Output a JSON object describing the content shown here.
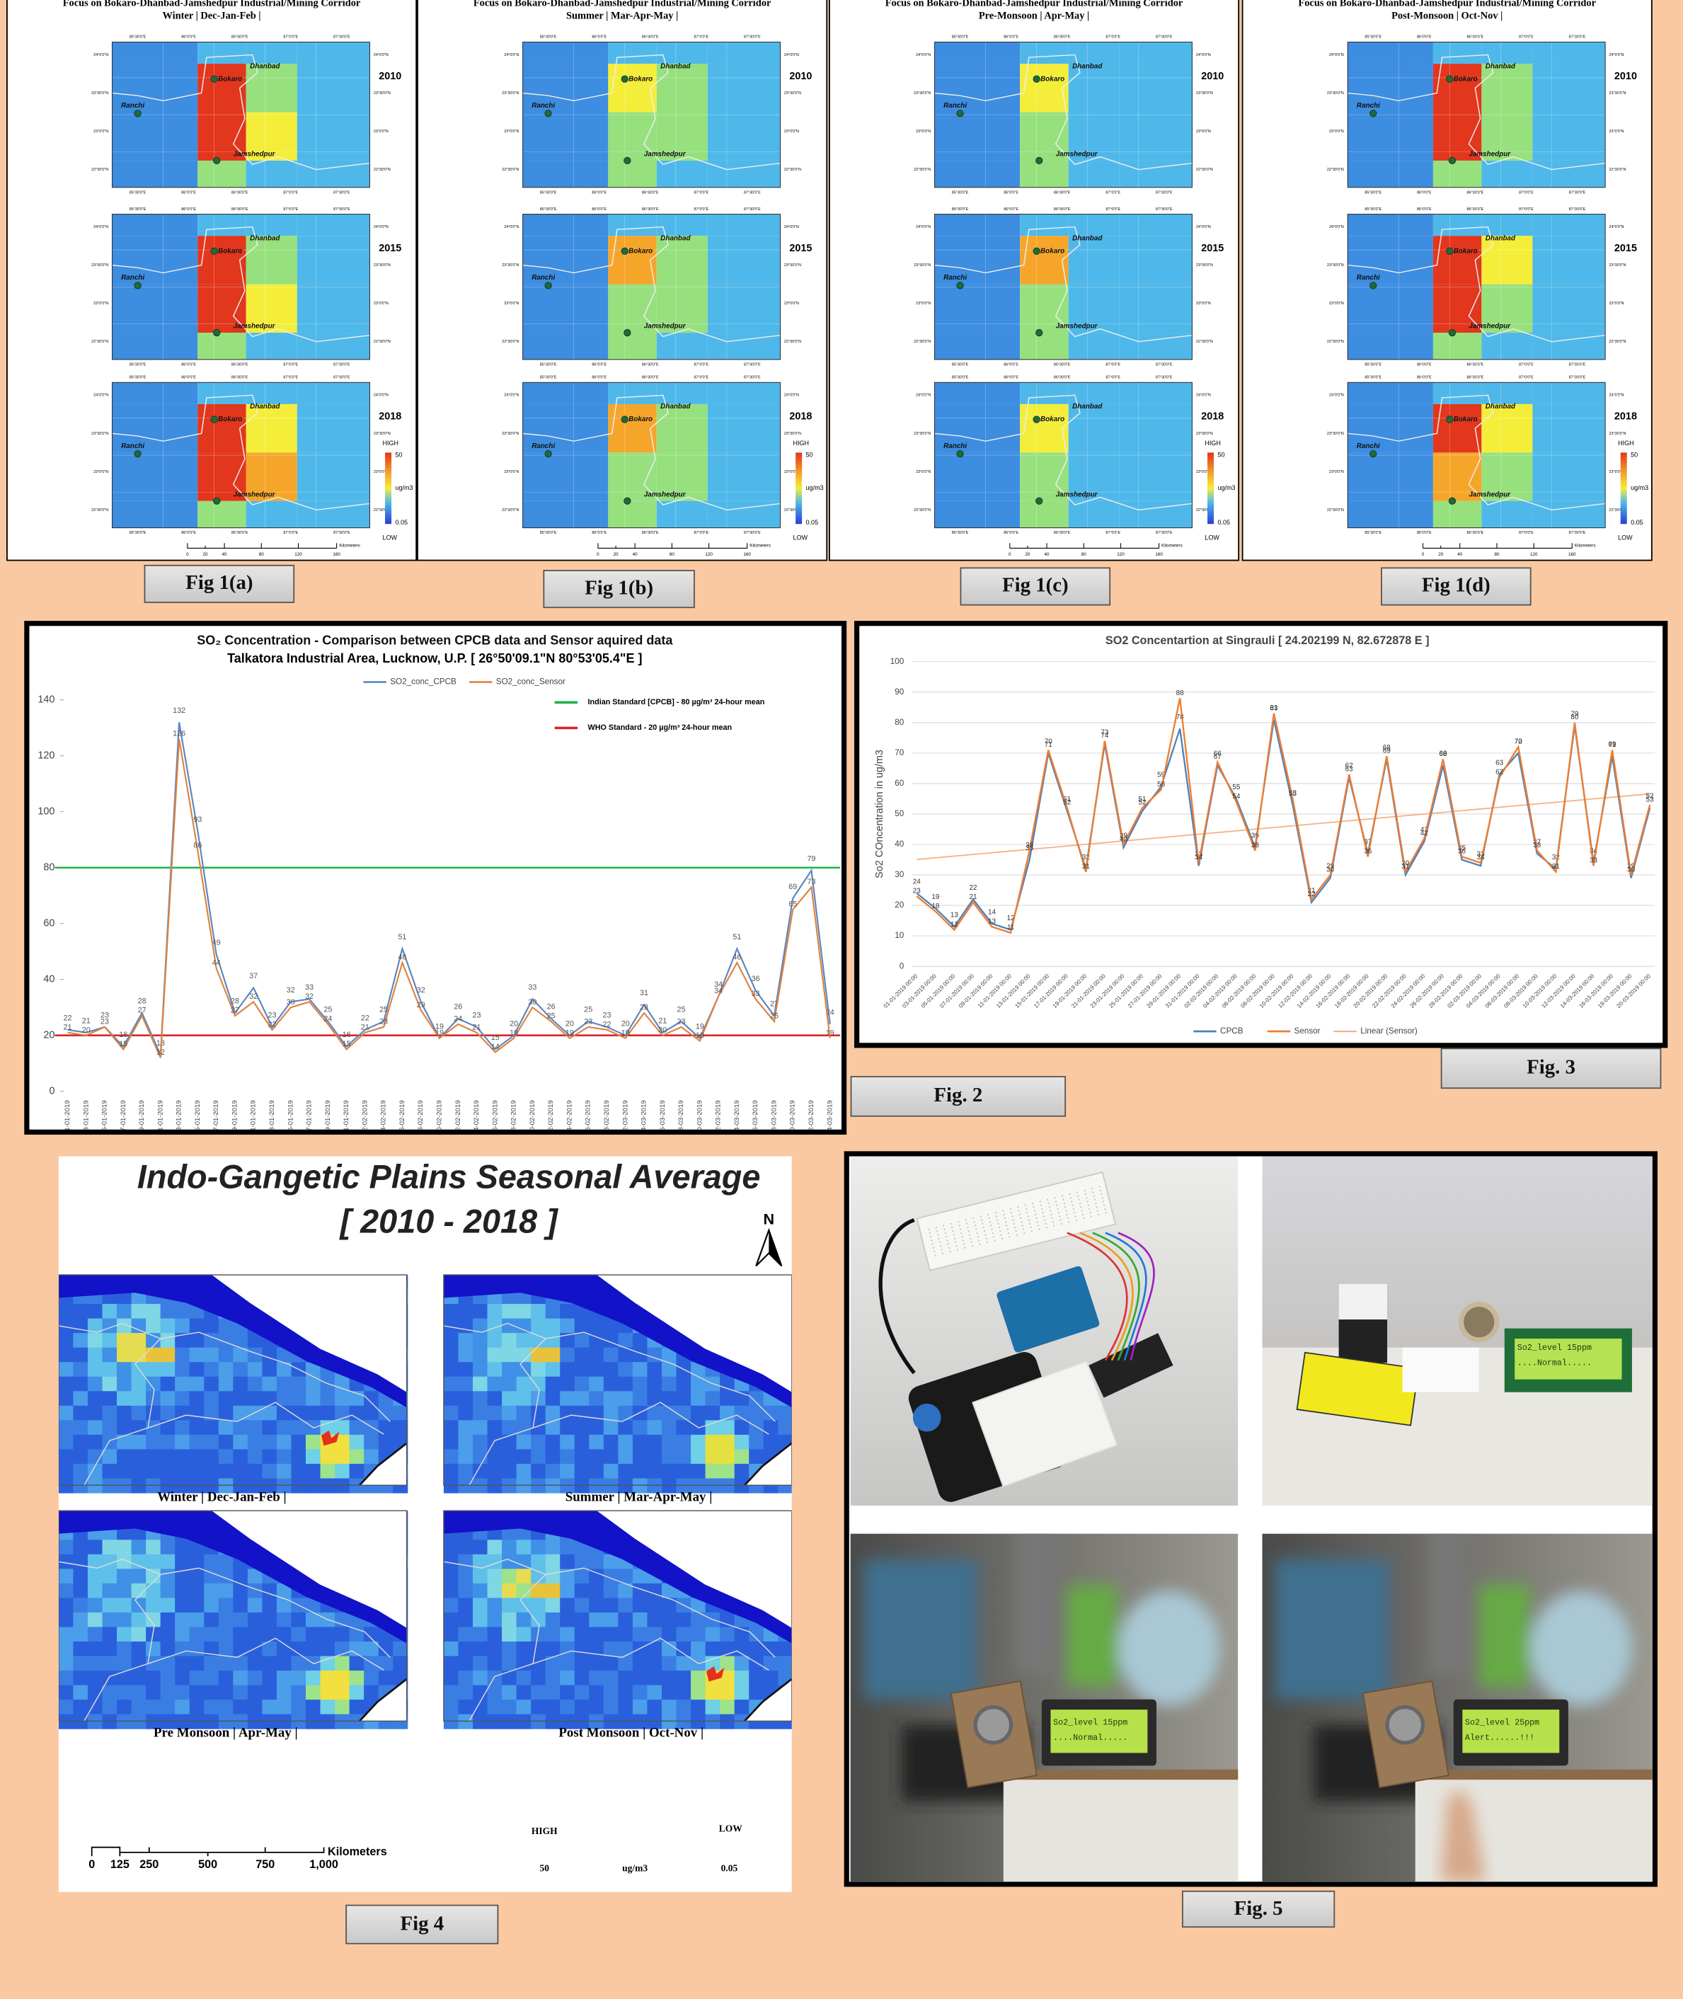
{
  "fig1": {
    "panels": [
      {
        "title": "Focus on Bokaro-Dhanbad-Jamshedpur Industrial/Mining Corridor",
        "season": "Winter | Dec-Jan-Feb |",
        "caption": "Fig 1(a)"
      },
      {
        "title": "Focus on Bokaro-Dhanbad-Jamshedpur Industrial/Mining Corridor",
        "season": "Summer | Mar-Apr-May |",
        "caption": "Fig 1(b)"
      },
      {
        "title": "Focus on Bokaro-Dhanbad-Jamshedpur Industrial/Mining Corridor",
        "season": "Pre-Monsoon | Apr-May |",
        "caption": "Fig 1(c)"
      },
      {
        "title": "Focus on Bokaro-Dhanbad-Jamshedpur Industrial/Mining Corridor",
        "season": "Post-Monsoon | Oct-Nov |",
        "caption": "Fig 1(d)"
      }
    ],
    "years": [
      "2010",
      "2015",
      "2018"
    ],
    "places": {
      "ranchi": "Ranchi",
      "bokaro": "Bokaro",
      "dhanbad": "Dhanbad",
      "jamshedpur": "Jamshedpur"
    },
    "lon_ticks": [
      "85°30'0\"E",
      "86°0'0\"E",
      "86°30'0\"E",
      "87°0'0\"E",
      "87°30'0\"E"
    ],
    "lat_ticks": [
      "24°0'0\"N",
      "23°30'0\"N",
      "23°0'0\"N",
      "22°30'0\"N"
    ],
    "legend": {
      "high": "HIGH",
      "max": "50",
      "unit": "ug/m3",
      "min": "0.05",
      "low": "LOW"
    },
    "scale": {
      "ticks": [
        "0",
        "20",
        "40",
        "80",
        "120",
        "160"
      ],
      "unit": "Kilometers"
    }
  },
  "chart_data": [
    {
      "type": "line",
      "title": "SO₂ Concentration - Comparison between CPCB data and Sensor aquired data",
      "subtitle": "Talkatora Industrial Area, Lucknow, U.P. [ 26°50'09.1\"N  80°53'05.4\"E ]",
      "categories": [
        "01-01-2019",
        "03-01-2019",
        "05-01-2019",
        "07-01-2019",
        "09-01-2019",
        "11-01-2019",
        "13-01-2019",
        "15-01-2019",
        "17-01-2019",
        "19-01-2019",
        "21-01-2019",
        "23-01-2019",
        "25-01-2019",
        "27-01-2019",
        "29-01-2019",
        "31-01-2019",
        "02-02-2019",
        "04-02-2019",
        "06-02-2019",
        "08-02-2019",
        "10-02-2019",
        "12-02-2019",
        "14-02-2019",
        "16-02-2019",
        "18-02-2019",
        "20-02-2019",
        "22-02-2019",
        "24-02-2019",
        "26-02-2019",
        "28-02-2019",
        "02-03-2019",
        "04-03-2019",
        "06-03-2019",
        "08-03-2019",
        "10-03-2019",
        "12-03-2019",
        "14-03-2019",
        "16-03-2019",
        "18-03-2019",
        "20-03-2019",
        "22-03-2019",
        "24-03-2019"
      ],
      "series": [
        {
          "name": "SO2_conc_CPCB",
          "color": "#5b86c2",
          "values": [
            22,
            21,
            23,
            16,
            28,
            13,
            132,
            93,
            49,
            28,
            37,
            23,
            32,
            33,
            25,
            16,
            22,
            25,
            51,
            32,
            19,
            26,
            23,
            15,
            20,
            33,
            26,
            20,
            25,
            23,
            20,
            31,
            21,
            25,
            19,
            34,
            51,
            36,
            27,
            69,
            79,
            24
          ]
        },
        {
          "name": "SO2_conc_Sensor",
          "color": "#e0823f",
          "values": [
            21,
            20,
            23,
            15,
            27,
            12,
            126,
            86,
            44,
            27,
            32,
            22,
            30,
            32,
            24,
            15,
            21,
            23,
            46,
            29,
            19,
            24,
            21,
            14,
            19,
            30,
            25,
            19,
            23,
            22,
            19,
            28,
            20,
            23,
            18,
            34,
            46,
            33,
            25,
            65,
            73,
            19
          ]
        }
      ],
      "reference_lines": [
        {
          "name": "Indian Standard [CPCB] - 80 µg/m³ 24-hour mean",
          "value": 80,
          "color": "#22b24c"
        },
        {
          "name": "WHO Standard - 20 µg/m³ 24-hour mean",
          "value": 20,
          "color": "#d9252b"
        }
      ],
      "ylim": [
        0,
        140
      ],
      "yticks": [
        0,
        20,
        40,
        60,
        80,
        100,
        120,
        140
      ],
      "grid": false
    },
    {
      "type": "line",
      "title": "SO2 Concentartion at Singrauli [ 24.202199 N, 82.672878 E ]",
      "y_label": "So2 COncentration in ug/m3",
      "categories": [
        "01-01-2019 00:00",
        "03-01-2019 00:00",
        "05-01-2019 00:00",
        "07-01-2019 00:00",
        "09-01-2019 00:00",
        "11-01-2019 00:00",
        "13-01-2019 00:00",
        "15-01-2019 00:00",
        "17-01-2019 00:00",
        "19-01-2019 00:00",
        "21-01-2019 00:00",
        "23-01-2019 00:00",
        "25-01-2019 00:00",
        "27-01-2019 00:00",
        "29-01-2019 00:00",
        "31-01-2019 00:00",
        "02-02-2019 00:00",
        "04-02-2019 00:00",
        "06-02-2019 00:00",
        "08-02-2019 00:00",
        "10-02-2019 00:00",
        "12-02-2019 00:00",
        "14-02-2019 00:00",
        "16-02-2019 00:00",
        "18-02-2019 00:00",
        "20-02-2019 00:00",
        "22-02-2019 00:00",
        "24-02-2019 00:00",
        "26-02-2019 00:00",
        "28-02-2019 00:00",
        "02-03-2019 00:00",
        "04-03-2019 00:00",
        "06-03-2019 00:00",
        "08-03-2019 00:00",
        "10-03-2019 00:00",
        "12-03-2019 00:00",
        "14-03-2019 00:00",
        "16-03-2019 00:00",
        "18-03-2019 00:00",
        "20-03-2019 00:00"
      ],
      "series": [
        {
          "name": "CPCB",
          "color": "#4f81bd",
          "values": [
            24,
            19,
            13,
            22,
            14,
            12,
            35,
            70,
            51,
            32,
            73,
            39,
            51,
            59,
            78,
            33,
            66,
            55,
            39,
            81,
            53,
            21,
            29,
            62,
            37,
            68,
            30,
            41,
            66,
            35,
            33,
            63,
            70,
            37,
            32,
            79,
            34,
            69,
            29,
            52
          ]
        },
        {
          "name": "Sensor",
          "color": "#ed7d31",
          "values": [
            23,
            18,
            12,
            21,
            13,
            11,
            38,
            71,
            52,
            31,
            74,
            40,
            52,
            58,
            88,
            34,
            67,
            54,
            38,
            83,
            55,
            22,
            30,
            63,
            36,
            69,
            31,
            42,
            68,
            36,
            34,
            62,
            72,
            38,
            31,
            80,
            33,
            71,
            30,
            53
          ]
        }
      ],
      "trendline": {
        "name": "Linear (Sensor)",
        "color": "#f4b183"
      },
      "ylim": [
        0,
        100
      ],
      "yticks": [
        0,
        10,
        20,
        30,
        40,
        50,
        60,
        70,
        80,
        90,
        100
      ],
      "grid": true
    }
  ],
  "captions": {
    "fig2": "Fig. 2",
    "fig3": "Fig. 3",
    "fig4": "Fig 4",
    "fig5": "Fig. 5"
  },
  "fig4": {
    "title": "Indo-Gangetic Plains Seasonal Average",
    "period": "[ 2010 - 2018 ]",
    "north": "N",
    "maps": [
      "Winter | Dec-Jan-Feb |",
      "Summer | Mar-Apr-May |",
      "Pre Monsoon | Apr-May |",
      "Post Monsoon | Oct-Nov |"
    ],
    "scale": {
      "ticks": [
        "0",
        "125",
        "250",
        "500",
        "750",
        "1,000"
      ],
      "unit": "Kilometers"
    },
    "legend": {
      "high": "HIGH",
      "low": "LOW",
      "max": "50",
      "unit": "ug/m3",
      "min": "0.05"
    }
  },
  "fig5": {
    "lcd": [
      {
        "line1": "So2_level 15ppm",
        "line2": "....Normal....."
      },
      {
        "line1": "So2_level 15ppm",
        "line2": "....Normal....."
      },
      {
        "line1": "So2_level 25ppm",
        "line2": "Alert......!!!"
      }
    ]
  }
}
